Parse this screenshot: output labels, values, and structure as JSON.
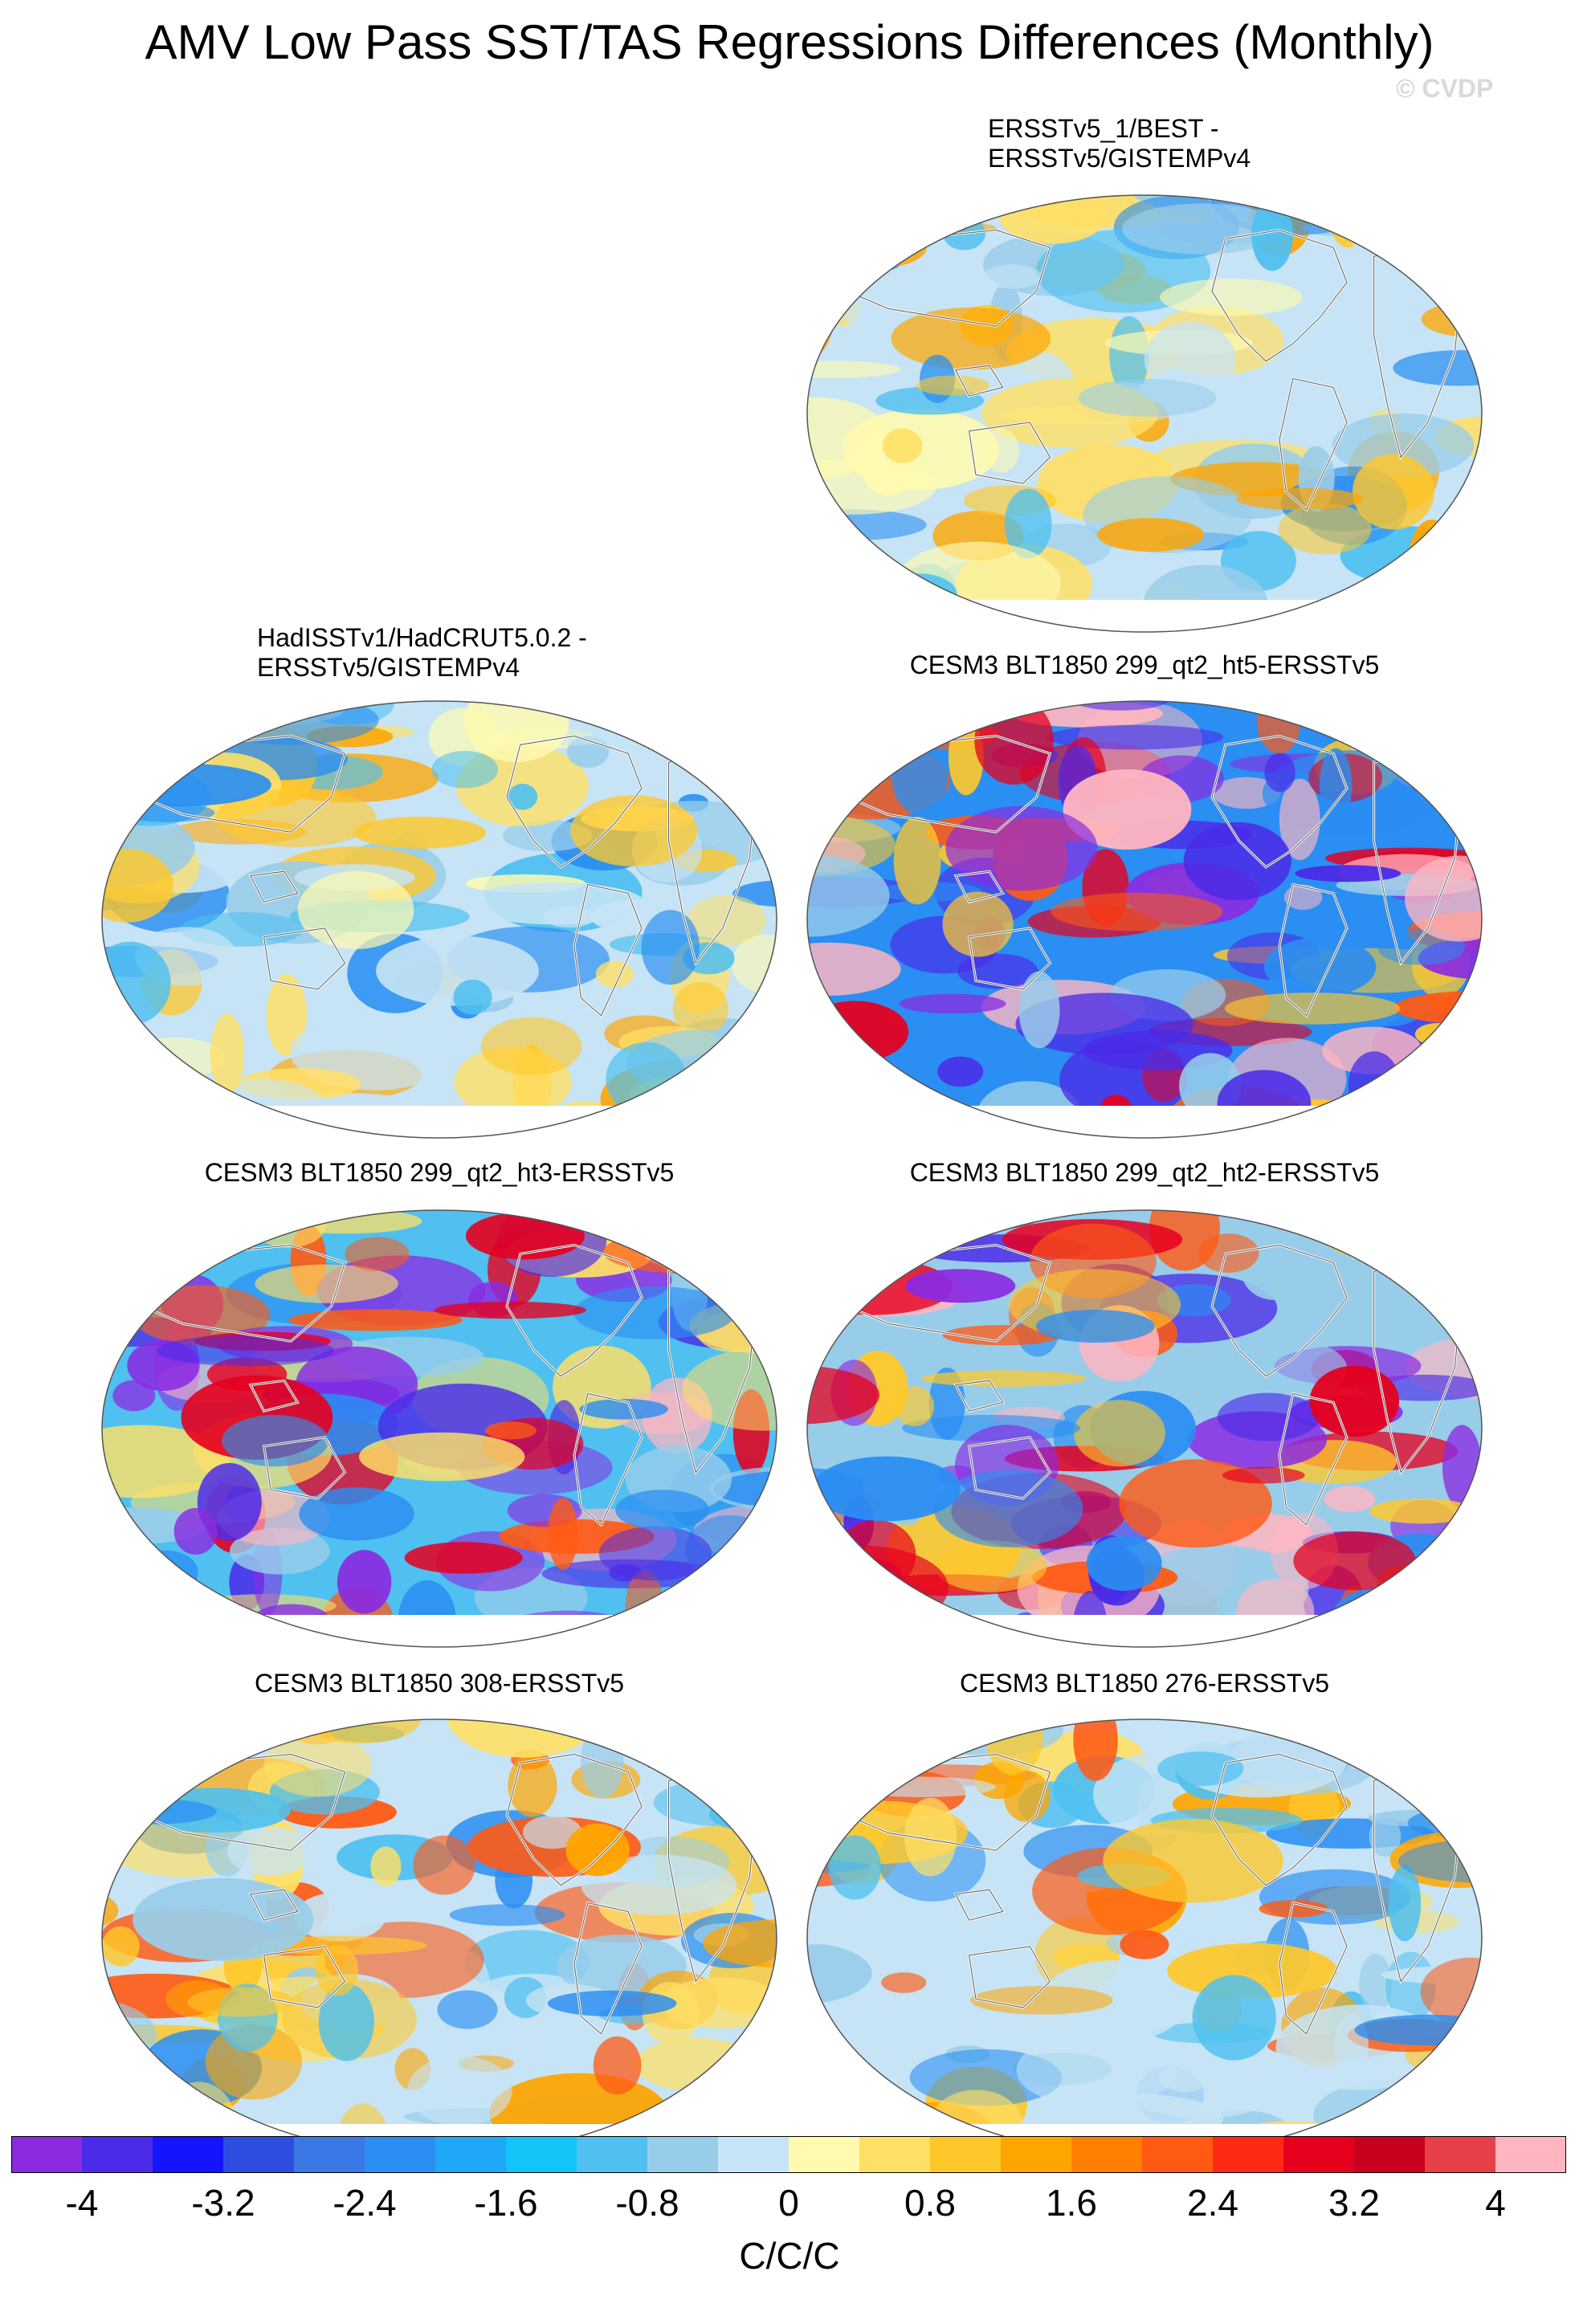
{
  "title": "AMV Low Pass SST/TAS Regressions Differences (Monthly)",
  "copyright": "© CVDP",
  "colorbar": {
    "colors": [
      "#8a2be2",
      "#4b2be8",
      "#1414ff",
      "#2e4de0",
      "#3a78e6",
      "#2a8ef2",
      "#1ea8f7",
      "#12c4f7",
      "#4fc0f0",
      "#98cdea",
      "#c6e4f5",
      "#fffab0",
      "#ffe066",
      "#ffc82a",
      "#ffa500",
      "#ff8000",
      "#ff5a14",
      "#ff2a14",
      "#e6001e",
      "#c8001e",
      "#e6404a",
      "#ffb6c1"
    ],
    "labels": [
      "-4",
      "-3.2",
      "-2.4",
      "-1.6",
      "-0.8",
      "0",
      "0.8",
      "1.6",
      "2.4",
      "3.2",
      "4"
    ],
    "units": "C/C/C"
  },
  "panels": [
    {
      "id": "p1",
      "title": [
        "ERSSTv5_1/BEST -",
        "ERSSTv5/GISTEMPv4"
      ]
    },
    {
      "id": "p2",
      "title": [
        "HadISSTv1/HadCRUT5.0.2 -",
        "ERSSTv5/GISTEMPv4"
      ]
    },
    {
      "id": "p3",
      "title": [
        "CESM3 BLT1850 299_qt2_ht5-ERSSTv5"
      ]
    },
    {
      "id": "p4",
      "title": [
        "CESM3 BLT1850 299_qt2_ht3-ERSSTv5"
      ]
    },
    {
      "id": "p5",
      "title": [
        "CESM3 BLT1850 299_qt2_ht2-ERSSTv5"
      ]
    },
    {
      "id": "p6",
      "title": [
        "CESM3 BLT1850 308-ERSSTv5"
      ]
    },
    {
      "id": "p7",
      "title": [
        "CESM3 BLT1850 276-ERSSTv5"
      ]
    }
  ],
  "chart_data": {
    "type": "heatmap",
    "projection": "Robinson (global map)",
    "title": "AMV Low Pass SST/TAS Regressions Differences (Monthly)",
    "colorbar_range": [
      -4,
      4
    ],
    "colorbar_ticks": [
      -4,
      -3.2,
      -2.4,
      -1.6,
      -0.8,
      0,
      0.8,
      1.6,
      2.4,
      3.2,
      4
    ],
    "units": "C/C/C"
  }
}
